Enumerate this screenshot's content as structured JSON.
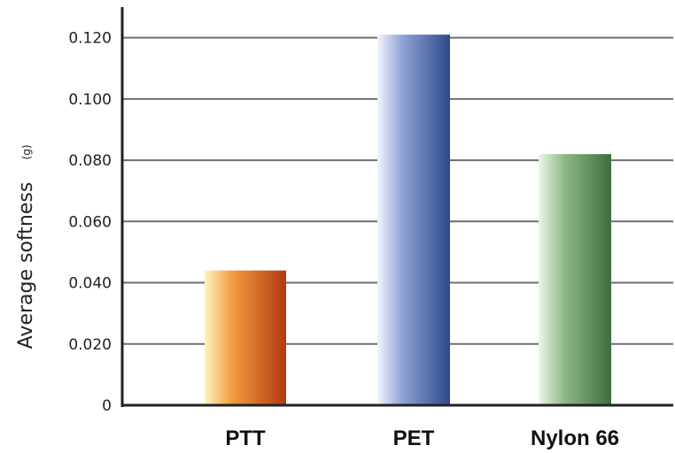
{
  "chart_data": {
    "type": "bar",
    "categories": [
      "PTT",
      "PET",
      "Nylon 66"
    ],
    "values": [
      0.044,
      0.121,
      0.082
    ],
    "title": "",
    "xlabel": "",
    "ylabel": "Average softness",
    "ylabel_unit": "(g)",
    "ylim": [
      0,
      0.13
    ],
    "yticks": [
      0,
      0.02,
      0.04,
      0.06,
      0.08,
      0.1,
      0.12
    ],
    "ytick_labels": [
      "0",
      "0.020",
      "0.040",
      "0.060",
      "0.080",
      "0.100",
      "0.120"
    ],
    "grid": true,
    "bar_colors": [
      {
        "light": "#fff3c0",
        "mid": "#f19a3e",
        "dark": "#b03a10"
      },
      {
        "light": "#f2f4ff",
        "mid": "#8fa0d4",
        "dark": "#2e4a8c"
      },
      {
        "light": "#eef6ea",
        "mid": "#8fb886",
        "dark": "#3e6e40"
      }
    ]
  }
}
